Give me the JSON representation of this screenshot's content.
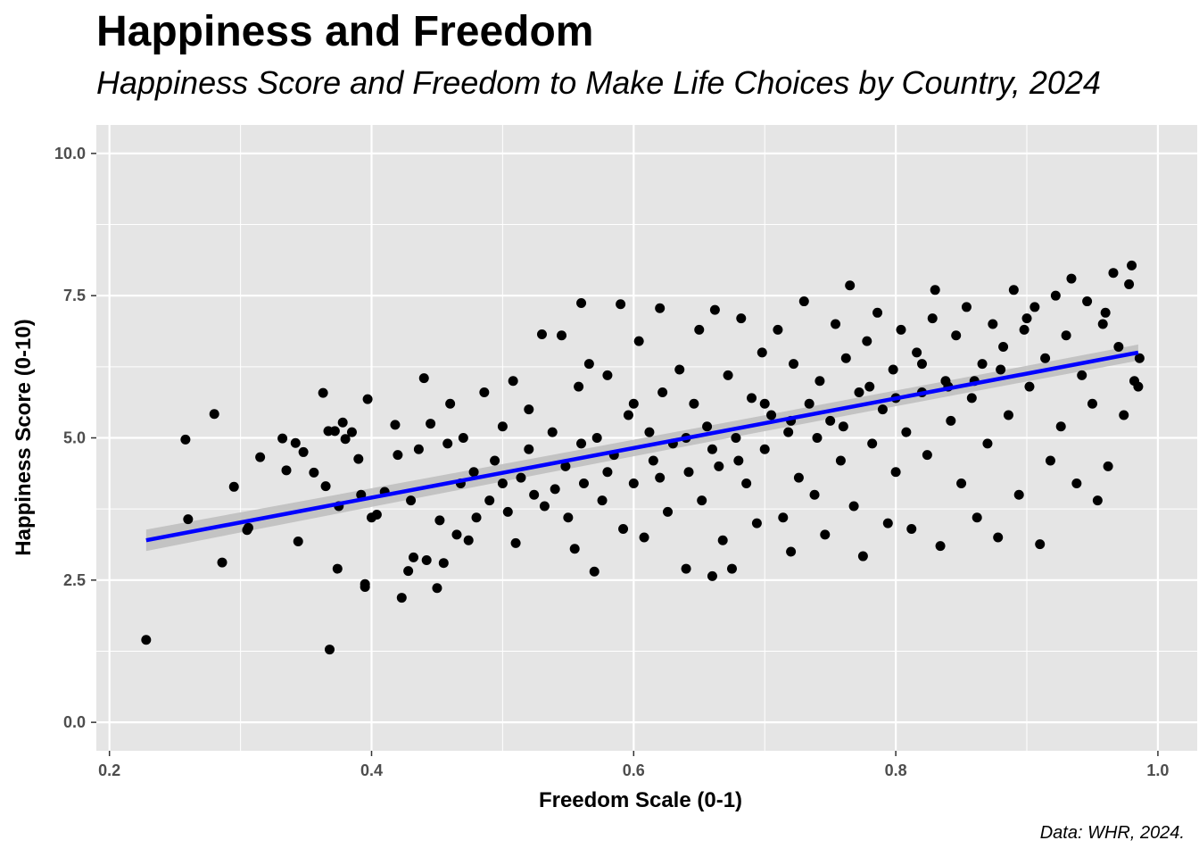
{
  "chart_data": {
    "type": "scatter",
    "title": "Happiness and Freedom",
    "subtitle": "Happiness Score and Freedom to Make Life Choices by Country, 2024",
    "caption": "Data: WHR, 2024.",
    "xlabel": "Freedom Scale (0-1)",
    "ylabel": "Happiness Score (0-10)",
    "xlim": [
      0.19,
      1.03
    ],
    "ylim": [
      -0.5,
      10.5
    ],
    "xticks": [
      0.2,
      0.4,
      0.6,
      0.8,
      1.0
    ],
    "xtick_labels": [
      "0.2",
      "0.4",
      "0.6",
      "0.8",
      "1.0"
    ],
    "yticks": [
      0,
      2.5,
      5,
      7.5,
      10
    ],
    "ytick_labels": [
      "0.0",
      "2.5",
      "5.0",
      "7.5",
      "10.0"
    ],
    "grid": true,
    "background": "#e5e5e5",
    "point_color": "#000000",
    "trend": {
      "type": "linear",
      "color": "#0000ff",
      "band_color": "#bdbdbd",
      "x": [
        0.228,
        0.985
      ],
      "y": [
        3.2,
        6.5
      ]
    },
    "points": [
      [
        0.228,
        1.45
      ],
      [
        0.368,
        1.28
      ],
      [
        0.258,
        4.97
      ],
      [
        0.26,
        3.57
      ],
      [
        0.28,
        5.42
      ],
      [
        0.286,
        2.81
      ],
      [
        0.295,
        4.14
      ],
      [
        0.305,
        3.38
      ],
      [
        0.306,
        3.42
      ],
      [
        0.315,
        4.66
      ],
      [
        0.332,
        4.99
      ],
      [
        0.335,
        4.43
      ],
      [
        0.342,
        4.91
      ],
      [
        0.344,
        3.18
      ],
      [
        0.348,
        4.75
      ],
      [
        0.356,
        4.39
      ],
      [
        0.363,
        5.79
      ],
      [
        0.365,
        4.15
      ],
      [
        0.367,
        5.12
      ],
      [
        0.372,
        5.12
      ],
      [
        0.374,
        2.7
      ],
      [
        0.375,
        3.8
      ],
      [
        0.378,
        5.27
      ],
      [
        0.38,
        4.98
      ],
      [
        0.385,
        5.1
      ],
      [
        0.39,
        4.63
      ],
      [
        0.392,
        4.0
      ],
      [
        0.395,
        2.43
      ],
      [
        0.395,
        2.38
      ],
      [
        0.397,
        5.68
      ],
      [
        0.4,
        3.6
      ],
      [
        0.404,
        3.65
      ],
      [
        0.41,
        4.05
      ],
      [
        0.418,
        5.23
      ],
      [
        0.42,
        4.7
      ],
      [
        0.423,
        2.19
      ],
      [
        0.428,
        2.66
      ],
      [
        0.43,
        3.9
      ],
      [
        0.432,
        2.9
      ],
      [
        0.436,
        4.8
      ],
      [
        0.44,
        6.05
      ],
      [
        0.442,
        2.85
      ],
      [
        0.445,
        5.25
      ],
      [
        0.45,
        2.36
      ],
      [
        0.452,
        3.55
      ],
      [
        0.455,
        2.8
      ],
      [
        0.458,
        4.9
      ],
      [
        0.46,
        5.6
      ],
      [
        0.465,
        3.3
      ],
      [
        0.468,
        4.2
      ],
      [
        0.47,
        5.0
      ],
      [
        0.474,
        3.2
      ],
      [
        0.478,
        4.4
      ],
      [
        0.48,
        3.6
      ],
      [
        0.486,
        5.8
      ],
      [
        0.49,
        3.9
      ],
      [
        0.494,
        4.6
      ],
      [
        0.5,
        5.2
      ],
      [
        0.504,
        3.7
      ],
      [
        0.508,
        6.0
      ],
      [
        0.51,
        3.15
      ],
      [
        0.514,
        4.3
      ],
      [
        0.52,
        5.5
      ],
      [
        0.524,
        4.0
      ],
      [
        0.53,
        6.82
      ],
      [
        0.532,
        3.8
      ],
      [
        0.538,
        5.1
      ],
      [
        0.545,
        6.8
      ],
      [
        0.548,
        4.5
      ],
      [
        0.55,
        3.6
      ],
      [
        0.555,
        3.05
      ],
      [
        0.558,
        5.9
      ],
      [
        0.56,
        7.37
      ],
      [
        0.562,
        4.2
      ],
      [
        0.566,
        6.3
      ],
      [
        0.57,
        2.65
      ],
      [
        0.572,
        5.0
      ],
      [
        0.576,
        3.9
      ],
      [
        0.58,
        6.1
      ],
      [
        0.585,
        4.7
      ],
      [
        0.59,
        7.35
      ],
      [
        0.592,
        3.4
      ],
      [
        0.596,
        5.4
      ],
      [
        0.6,
        4.2
      ],
      [
        0.604,
        6.7
      ],
      [
        0.608,
        3.25
      ],
      [
        0.612,
        5.1
      ],
      [
        0.615,
        4.6
      ],
      [
        0.62,
        7.28
      ],
      [
        0.622,
        5.8
      ],
      [
        0.626,
        3.7
      ],
      [
        0.63,
        4.9
      ],
      [
        0.635,
        6.2
      ],
      [
        0.64,
        2.7
      ],
      [
        0.642,
        4.4
      ],
      [
        0.646,
        5.6
      ],
      [
        0.65,
        6.9
      ],
      [
        0.652,
        3.9
      ],
      [
        0.656,
        5.2
      ],
      [
        0.66,
        2.57
      ],
      [
        0.662,
        7.25
      ],
      [
        0.665,
        4.5
      ],
      [
        0.668,
        3.2
      ],
      [
        0.672,
        6.1
      ],
      [
        0.675,
        2.7
      ],
      [
        0.678,
        5.0
      ],
      [
        0.682,
        7.1
      ],
      [
        0.686,
        4.2
      ],
      [
        0.69,
        5.7
      ],
      [
        0.694,
        3.5
      ],
      [
        0.698,
        6.5
      ],
      [
        0.7,
        4.8
      ],
      [
        0.705,
        5.4
      ],
      [
        0.71,
        6.9
      ],
      [
        0.714,
        3.6
      ],
      [
        0.718,
        5.1
      ],
      [
        0.72,
        3.0
      ],
      [
        0.722,
        6.3
      ],
      [
        0.726,
        4.3
      ],
      [
        0.73,
        7.4
      ],
      [
        0.734,
        5.6
      ],
      [
        0.738,
        4.0
      ],
      [
        0.742,
        6.0
      ],
      [
        0.746,
        3.3
      ],
      [
        0.75,
        5.3
      ],
      [
        0.754,
        7.0
      ],
      [
        0.758,
        4.6
      ],
      [
        0.762,
        6.4
      ],
      [
        0.765,
        7.68
      ],
      [
        0.768,
        3.8
      ],
      [
        0.772,
        5.8
      ],
      [
        0.775,
        2.92
      ],
      [
        0.778,
        6.7
      ],
      [
        0.782,
        4.9
      ],
      [
        0.786,
        7.2
      ],
      [
        0.79,
        5.5
      ],
      [
        0.794,
        3.5
      ],
      [
        0.798,
        6.2
      ],
      [
        0.8,
        4.4
      ],
      [
        0.804,
        6.9
      ],
      [
        0.808,
        5.1
      ],
      [
        0.812,
        3.4
      ],
      [
        0.816,
        6.5
      ],
      [
        0.82,
        5.8
      ],
      [
        0.824,
        4.7
      ],
      [
        0.828,
        7.1
      ],
      [
        0.83,
        7.6
      ],
      [
        0.834,
        3.1
      ],
      [
        0.838,
        6.0
      ],
      [
        0.842,
        5.3
      ],
      [
        0.846,
        6.8
      ],
      [
        0.85,
        4.2
      ],
      [
        0.854,
        7.3
      ],
      [
        0.858,
        5.7
      ],
      [
        0.862,
        3.6
      ],
      [
        0.866,
        6.3
      ],
      [
        0.87,
        4.9
      ],
      [
        0.874,
        7.0
      ],
      [
        0.878,
        3.25
      ],
      [
        0.882,
        6.6
      ],
      [
        0.886,
        5.4
      ],
      [
        0.89,
        7.6
      ],
      [
        0.894,
        4.0
      ],
      [
        0.898,
        6.9
      ],
      [
        0.902,
        5.9
      ],
      [
        0.906,
        7.3
      ],
      [
        0.91,
        3.13
      ],
      [
        0.914,
        6.4
      ],
      [
        0.918,
        4.6
      ],
      [
        0.922,
        7.5
      ],
      [
        0.926,
        5.2
      ],
      [
        0.93,
        6.8
      ],
      [
        0.934,
        7.8
      ],
      [
        0.938,
        4.2
      ],
      [
        0.942,
        6.1
      ],
      [
        0.946,
        7.4
      ],
      [
        0.95,
        5.6
      ],
      [
        0.954,
        3.9
      ],
      [
        0.958,
        7.0
      ],
      [
        0.962,
        4.5
      ],
      [
        0.966,
        7.9
      ],
      [
        0.97,
        6.6
      ],
      [
        0.974,
        5.4
      ],
      [
        0.978,
        7.7
      ],
      [
        0.98,
        8.03
      ],
      [
        0.982,
        6.0
      ],
      [
        0.985,
        5.9
      ],
      [
        0.986,
        6.4
      ],
      [
        0.96,
        7.2
      ],
      [
        0.9,
        7.1
      ],
      [
        0.88,
        6.2
      ],
      [
        0.86,
        6.0
      ],
      [
        0.84,
        5.9
      ],
      [
        0.82,
        6.3
      ],
      [
        0.8,
        5.7
      ],
      [
        0.78,
        5.9
      ],
      [
        0.76,
        5.2
      ],
      [
        0.74,
        5.0
      ],
      [
        0.72,
        5.3
      ],
      [
        0.7,
        5.6
      ],
      [
        0.68,
        4.6
      ],
      [
        0.66,
        4.8
      ],
      [
        0.64,
        5.0
      ],
      [
        0.62,
        4.3
      ],
      [
        0.6,
        5.6
      ],
      [
        0.58,
        4.4
      ],
      [
        0.56,
        4.9
      ],
      [
        0.54,
        4.1
      ],
      [
        0.52,
        4.8
      ],
      [
        0.5,
        4.2
      ]
    ]
  }
}
